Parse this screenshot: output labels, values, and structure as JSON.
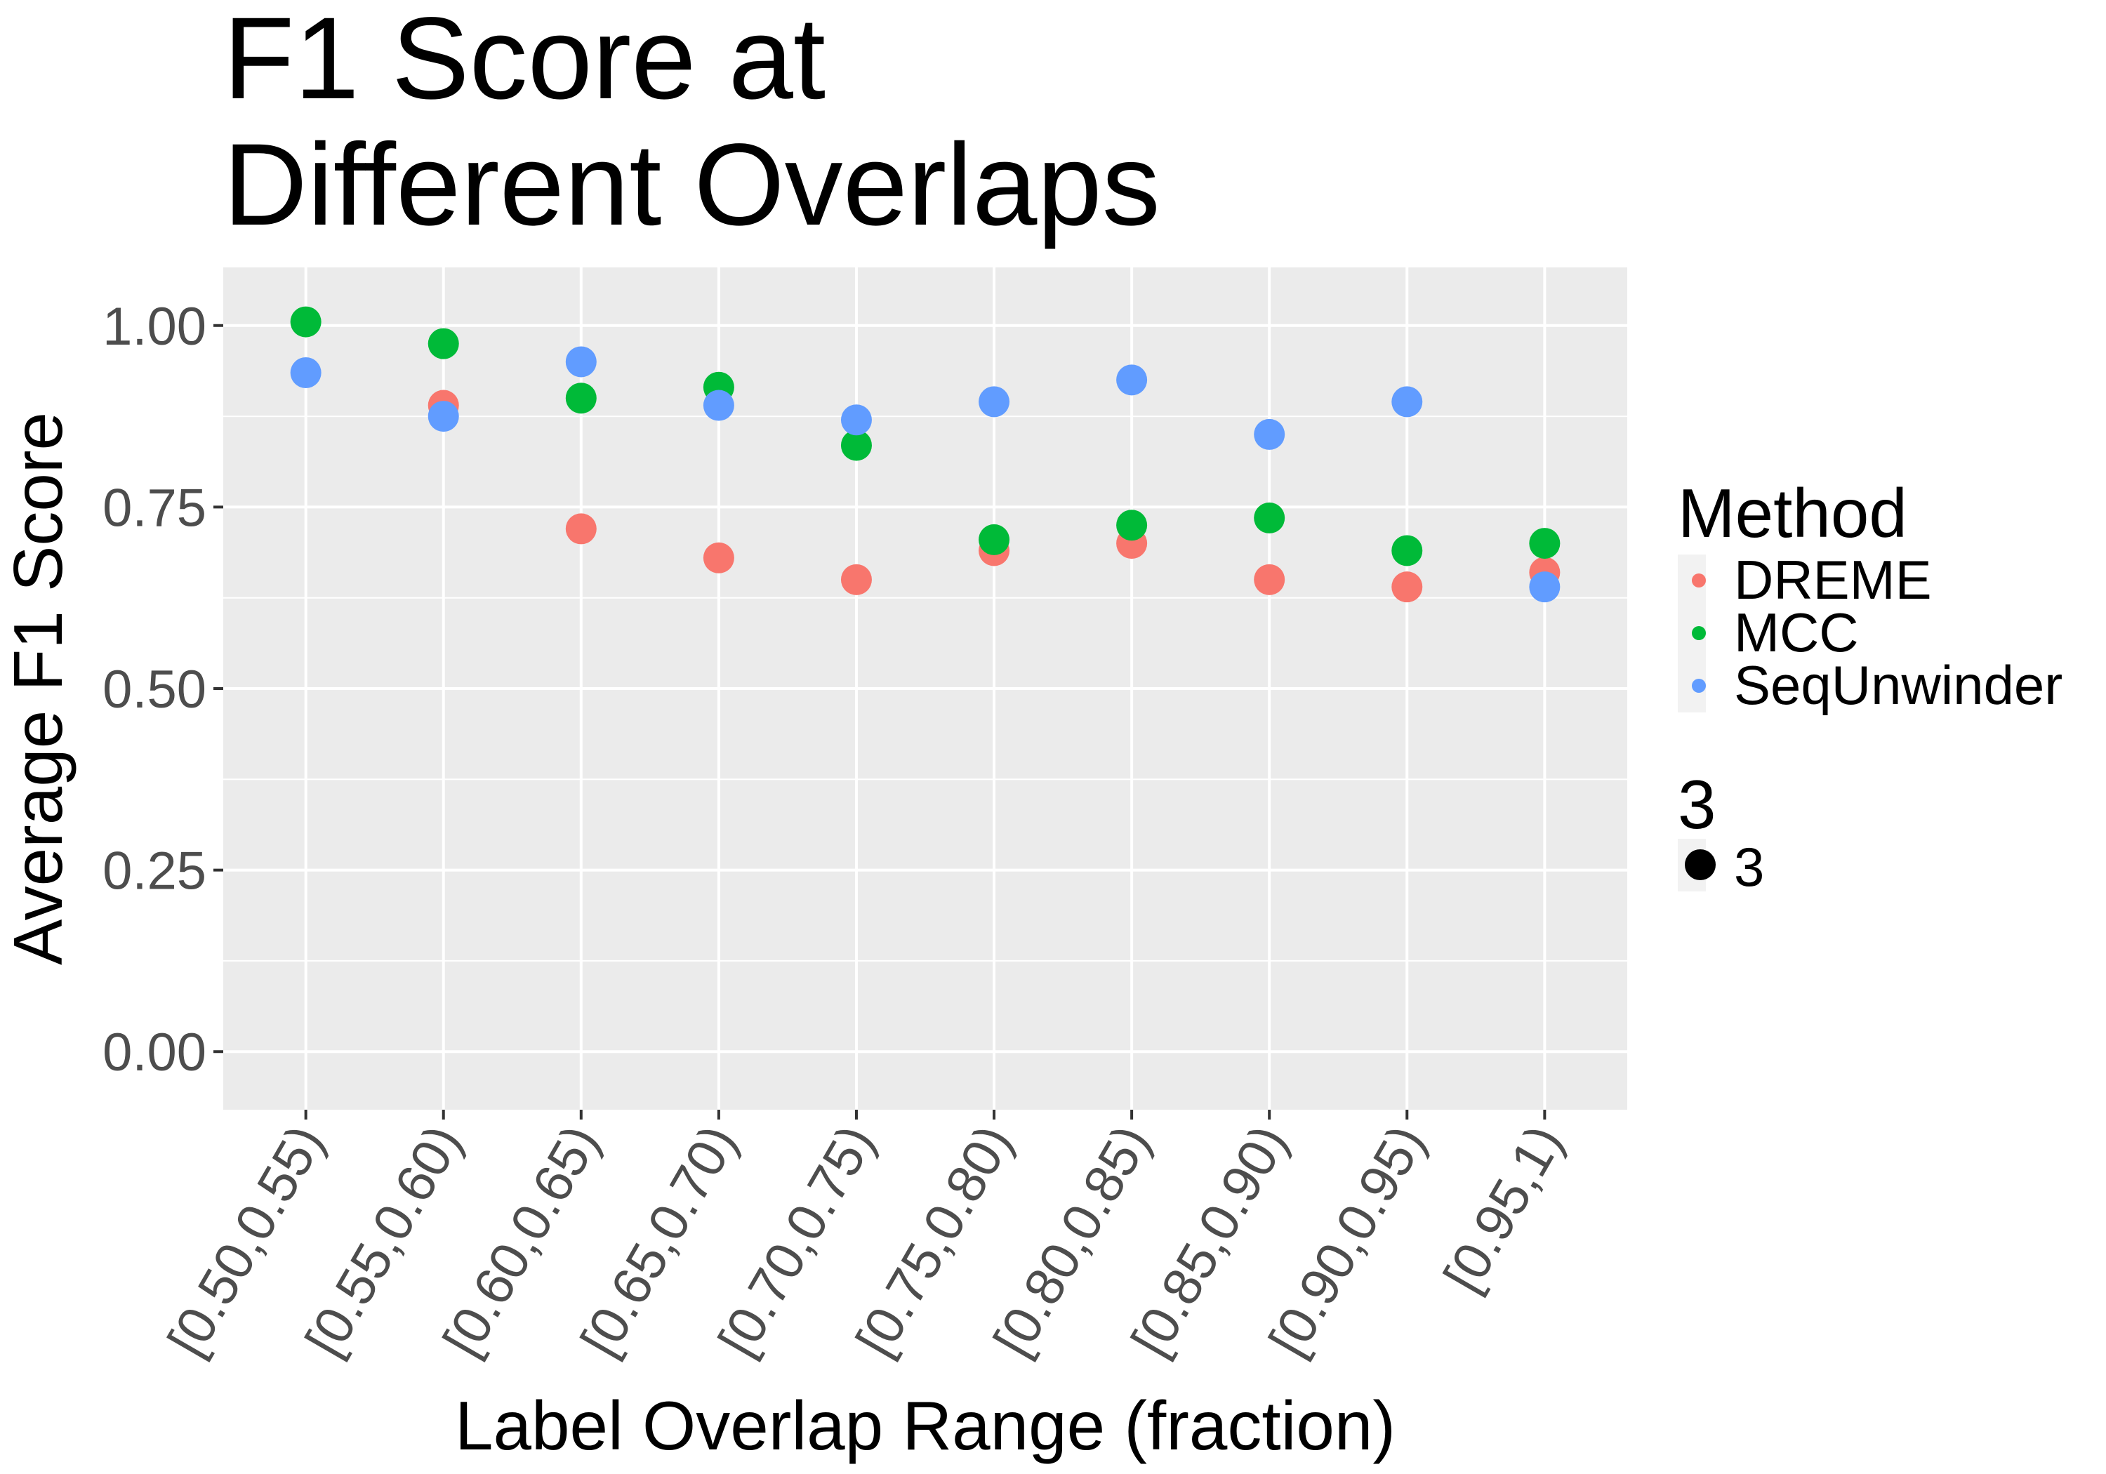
{
  "chart_data": {
    "type": "scatter",
    "title": "F1 Score at\nDifferent Overlaps",
    "xlabel": "Label Overlap Range (fraction)",
    "ylabel": "Average F1 Score",
    "categories": [
      "[0.50,0.55)",
      "[0.55,0.60)",
      "[0.60,0.65)",
      "[0.65,0.70)",
      "[0.70,0.75)",
      "[0.75,0.80)",
      "[0.80,0.85)",
      "[0.85,0.90)",
      "[0.90,0.95)",
      "[0.95,1)"
    ],
    "yticks": [
      "0.00",
      "0.25",
      "0.50",
      "0.75",
      "1.00"
    ],
    "ylim": [
      -0.08,
      1.08
    ],
    "grid": true,
    "legend_placement": "right",
    "legend_title": "Method",
    "size_legend_title": "3",
    "size_legend_label": "3",
    "series": [
      {
        "name": "DREME",
        "color": "#F8766D",
        "values": [
          null,
          0.89,
          0.72,
          0.68,
          0.65,
          0.69,
          0.7,
          0.65,
          0.64,
          0.66
        ]
      },
      {
        "name": "MCC",
        "color": "#00BA38",
        "values": [
          1.005,
          0.975,
          0.9,
          0.915,
          0.835,
          0.705,
          0.725,
          0.735,
          0.69,
          0.7
        ]
      },
      {
        "name": "SeqUnwinder",
        "color": "#619CFF",
        "values": [
          0.935,
          0.875,
          0.95,
          0.89,
          0.87,
          0.895,
          0.925,
          0.85,
          0.895,
          0.64
        ]
      }
    ]
  }
}
